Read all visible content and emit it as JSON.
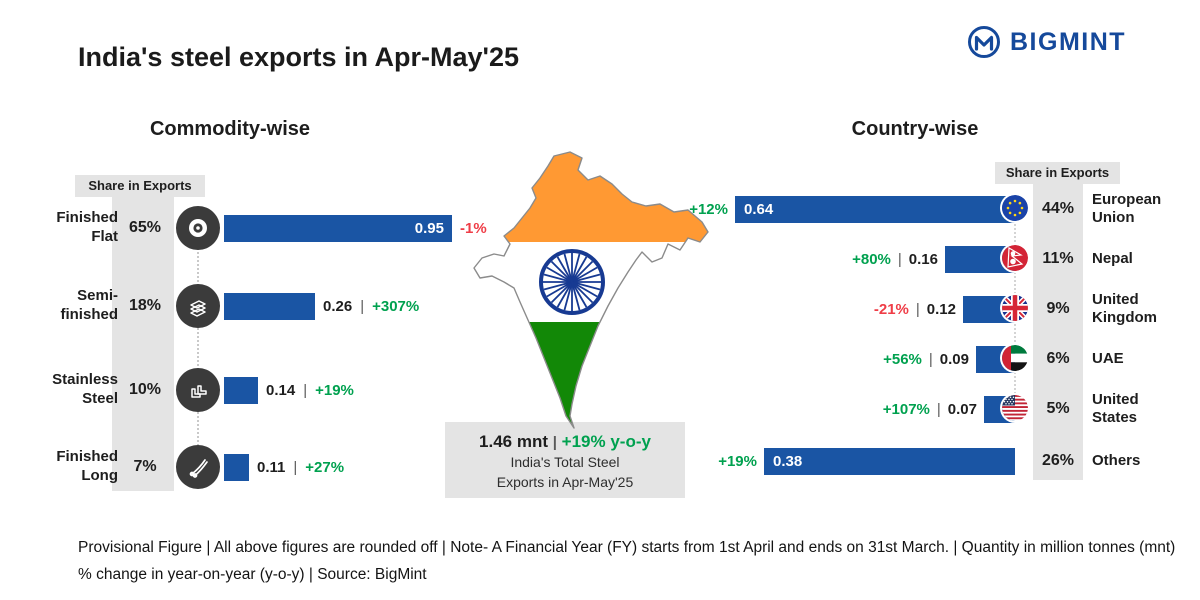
{
  "title": "India's steel exports in Apr-May'25",
  "brand": "BIGMINT",
  "colors": {
    "bar_blue": "#1a55a4",
    "positive_green": "#00a14f",
    "negative_red": "#ef3d47",
    "brand_blue": "#15499b",
    "panel_gray": "#e4e4e4",
    "icon_dark": "#3b3b3b",
    "saffron": "#ff9933",
    "india_green": "#128807",
    "chakra_blue": "#173a92"
  },
  "commodity": {
    "heading": "Commodity-wise",
    "share_header": "Share in Exports",
    "rows": [
      {
        "label": "Finished\nFlat",
        "share": "65%",
        "value": 0.95,
        "value_label": "0.95",
        "change": "-1%"
      },
      {
        "label": "Semi-\nfinished",
        "share": "18%",
        "value": 0.26,
        "value_label": "0.26",
        "sep": "|",
        "change": "+307%"
      },
      {
        "label": "Stainless\nSteel",
        "share": "10%",
        "value": 0.14,
        "value_label": "0.14",
        "sep": "|",
        "change": "+19%"
      },
      {
        "label": "Finished\nLong",
        "share": "7%",
        "value": 0.11,
        "value_label": "0.11",
        "sep": "|",
        "change": "+27%"
      }
    ]
  },
  "country": {
    "heading": "Country-wise",
    "share_header": "Share in Exports",
    "rows": [
      {
        "name": "European\nUnion",
        "share": "44%",
        "value": 0.64,
        "value_label": "0.64",
        "change": "+12%"
      },
      {
        "name": "Nepal",
        "share": "11%",
        "value": 0.16,
        "value_label": "0.16",
        "sep": "|",
        "change": "+80%"
      },
      {
        "name": "United\nKingdom",
        "share": "9%",
        "value": 0.12,
        "value_label": "0.12",
        "sep": "|",
        "change": "-21%"
      },
      {
        "name": "UAE",
        "share": "6%",
        "value": 0.09,
        "value_label": "0.09",
        "sep": "|",
        "change": "+56%"
      },
      {
        "name": "United\nStates",
        "share": "5%",
        "value": 0.07,
        "value_label": "0.07",
        "sep": "|",
        "change": "+107%"
      },
      {
        "name": "Others",
        "share": "26%",
        "value": 0.38,
        "value_label": "0.38",
        "change": "+19%"
      }
    ]
  },
  "total": {
    "value": "1.46 mnt",
    "sep": "|",
    "yoy": "+19% y-o-y",
    "line1": "India's Total Steel",
    "line2": "Exports in Apr-May'25"
  },
  "footnotes": {
    "line1": "Provisional Figure | All above figures are rounded off | Note- A Financial Year (FY) starts from 1st April and ends on 31st March. | Quantity in million tonnes (mnt)",
    "line2": "% change in year-on-year (y-o-y) | Source: BigMint"
  },
  "chart_data": [
    {
      "type": "bar",
      "title": "Commodity-wise",
      "orientation": "horizontal",
      "categories": [
        "Finished Flat",
        "Semi-finished",
        "Stainless Steel",
        "Finished Long"
      ],
      "series": [
        {
          "name": "Exports (mnt)",
          "values": [
            0.95,
            0.26,
            0.14,
            0.11
          ]
        },
        {
          "name": "Share in Exports (%)",
          "values": [
            65,
            18,
            10,
            7
          ]
        },
        {
          "name": "y-o-y change (%)",
          "values": [
            -1,
            307,
            19,
            27
          ]
        }
      ],
      "unit": "million tonnes (mnt)",
      "legend_position": "none",
      "grid": false
    },
    {
      "type": "bar",
      "title": "Country-wise",
      "orientation": "horizontal",
      "categories": [
        "European Union",
        "Nepal",
        "United Kingdom",
        "UAE",
        "United States",
        "Others"
      ],
      "series": [
        {
          "name": "Exports (mnt)",
          "values": [
            0.64,
            0.16,
            0.12,
            0.09,
            0.07,
            0.38
          ]
        },
        {
          "name": "Share in Exports (%)",
          "values": [
            44,
            11,
            9,
            6,
            5,
            26
          ]
        },
        {
          "name": "y-o-y change (%)",
          "values": [
            12,
            80,
            -21,
            56,
            107,
            19
          ]
        }
      ],
      "unit": "million tonnes (mnt)",
      "legend_position": "none",
      "grid": false
    },
    {
      "type": "table",
      "title": "India's Total Steel Exports in Apr-May'25",
      "values": {
        "total_mnt": 1.46,
        "yoy_change_pct": 19
      }
    }
  ]
}
